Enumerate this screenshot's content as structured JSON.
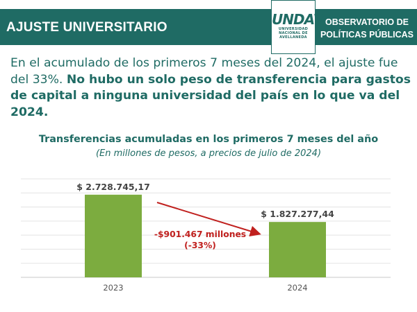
{
  "header": {
    "title": "AJUSTE UNIVERSITARIO",
    "right_line1": "OBSERVATORIO DE",
    "right_line2": "POLÍTICAS PÚBLICAS",
    "logo_mark": "UNDAV",
    "logo_line1": "UNIVERSIDAD",
    "logo_line2": "NACIONAL DE",
    "logo_line3": "AVELLANEDA"
  },
  "intro": {
    "normal": "En el acumulado de los primeros 7 meses del 2024, el ajuste fue del 33%. ",
    "bold": "No hubo un solo peso de transferencia para gastos de capital a ninguna universidad del país en lo que va del 2024."
  },
  "chart_data": {
    "type": "bar",
    "title": "Transferencias acumuladas en los primeros 7 meses del año",
    "subtitle": "(En millones de pesos, a precios de julio de 2024)",
    "categories": [
      "2023",
      "2024"
    ],
    "values": [
      2728745.17,
      1827277.44
    ],
    "data_labels": [
      "$ 2.728.745,17",
      "$ 1.827.277,44"
    ],
    "ylim": [
      0,
      3250000
    ],
    "grid": true,
    "bar_color": "#7cac3f",
    "annotation_line1": "-$901.467 millones",
    "annotation_line2": "(-33%)",
    "annotation_color": "#c0201e"
  },
  "colors": {
    "primary": "#1f6b64",
    "bar": "#7cac3f",
    "accent": "#c0201e"
  }
}
